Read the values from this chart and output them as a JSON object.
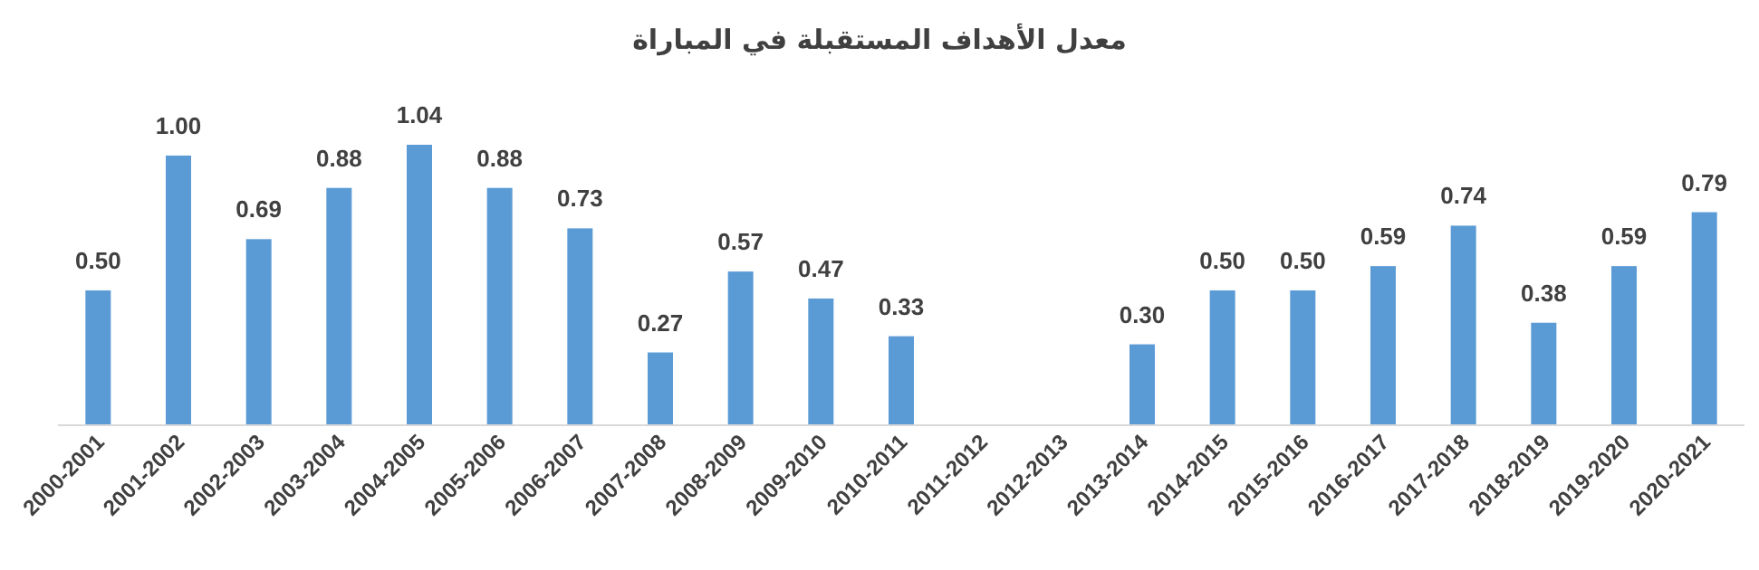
{
  "chart_data": {
    "type": "bar",
    "title": "معدل الأهداف المستقبلة في المباراة",
    "categories": [
      "2000-2001",
      "2001-2002",
      "2002-2003",
      "2003-2004",
      "2004-2005",
      "2005-2006",
      "2006-2007",
      "2007-2008",
      "2008-2009",
      "2009-2010",
      "2010-2011",
      "2011-2012",
      "2012-2013",
      "2013-2014",
      "2014-2015",
      "2015-2016",
      "2016-2017",
      "2017-2018",
      "2018-2019",
      "2019-2020",
      "2020-2021"
    ],
    "values": [
      0.5,
      1.0,
      0.69,
      0.88,
      1.04,
      0.88,
      0.73,
      0.27,
      0.57,
      0.47,
      0.33,
      null,
      null,
      0.3,
      0.5,
      0.5,
      0.59,
      0.74,
      0.38,
      0.59,
      0.79
    ],
    "value_labels": [
      "0.50",
      "1.00",
      "0.69",
      "0.88",
      "1.04",
      "0.88",
      "0.73",
      "0.27",
      "0.57",
      "0.47",
      "0.33",
      null,
      null,
      "0.30",
      "0.50",
      "0.50",
      "0.59",
      "0.74",
      "0.38",
      "0.59",
      "0.79"
    ],
    "color": "#5b9bd5"
  }
}
